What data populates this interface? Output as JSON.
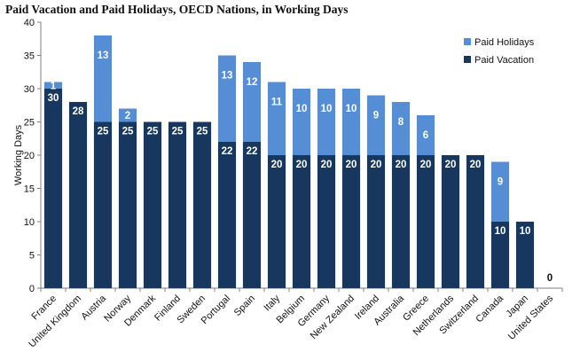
{
  "chart_data": {
    "type": "bar",
    "stacked": true,
    "title": "Paid Vacation and Paid Holidays, OECD Nations, in Working Days",
    "ylabel": "Working Days",
    "xlabel": "",
    "ylim": [
      0,
      40
    ],
    "yticks": [
      "0",
      "5",
      "10",
      "15",
      "20",
      "25",
      "30",
      "35",
      "40"
    ],
    "legend_position": "top-right",
    "categories": [
      "France",
      "United Kingdom",
      "Austria",
      "Norway",
      "Denmark",
      "Finland",
      "Sweden",
      "Portugal",
      "Spain",
      "Italy",
      "Belgium",
      "Germany",
      "New Zealand",
      "Ireland",
      "Australia",
      "Greece",
      "Netherlands",
      "Switzerland",
      "Canada",
      "Japan",
      "United States"
    ],
    "series": [
      {
        "name": "Paid Vacation",
        "color": "#17375E",
        "values": [
          30,
          28,
          25,
          25,
          25,
          25,
          25,
          22,
          22,
          20,
          20,
          20,
          20,
          20,
          20,
          20,
          20,
          20,
          10,
          10,
          0
        ],
        "labels": [
          "30",
          "28",
          "25",
          "25",
          "25",
          "25",
          "25",
          "22",
          "22",
          "20",
          "20",
          "20",
          "20",
          "20",
          "20",
          "20",
          "20",
          "20",
          "10",
          "10",
          "0"
        ]
      },
      {
        "name": "Paid Holidays",
        "color": "#558ED5",
        "values": [
          1,
          0,
          13,
          2,
          0,
          0,
          0,
          13,
          12,
          11,
          10,
          10,
          10,
          9,
          8,
          6,
          0,
          0,
          9,
          0,
          0
        ],
        "labels": [
          "1",
          "",
          "13",
          "2",
          "",
          "",
          "",
          "13",
          "12",
          "11",
          "10",
          "10",
          "10",
          "9",
          "8",
          "6",
          "",
          "",
          "9",
          "",
          ""
        ]
      }
    ],
    "legend_order": [
      "Paid Holidays",
      "Paid Vacation"
    ]
  }
}
